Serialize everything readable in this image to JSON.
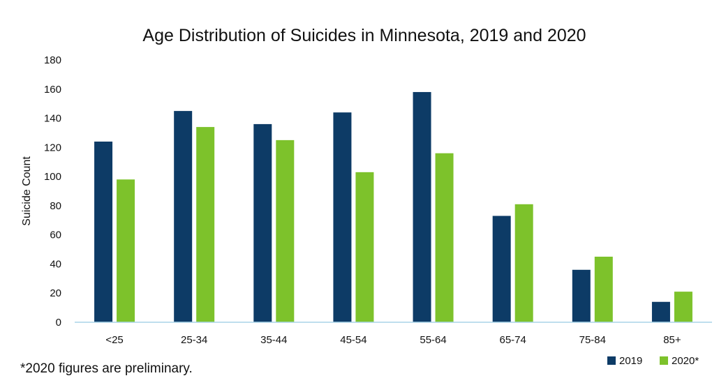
{
  "chart_data": {
    "type": "bar",
    "title": "Age Distribution of Suicides in Minnesota, 2019 and 2020",
    "xlabel": "",
    "ylabel": "Suicide Count",
    "categories": [
      "<25",
      "25-34",
      "35-44",
      "45-54",
      "55-64",
      "65-74",
      "75-84",
      "85+"
    ],
    "series": [
      {
        "name": "2019",
        "color": "#0d3b66",
        "values": [
          124,
          145,
          136,
          144,
          158,
          73,
          36,
          14
        ]
      },
      {
        "name": "2020*",
        "color": "#7dc22b",
        "values": [
          98,
          134,
          125,
          103,
          116,
          81,
          45,
          21
        ]
      }
    ],
    "ylim": [
      0,
      180
    ],
    "yticks": [
      0,
      20,
      40,
      60,
      80,
      100,
      120,
      140,
      160,
      180
    ],
    "grid": false,
    "legend_position": "bottom-right",
    "axis_color": "#a9d4e8"
  },
  "footnote": "*2020 figures are preliminary."
}
